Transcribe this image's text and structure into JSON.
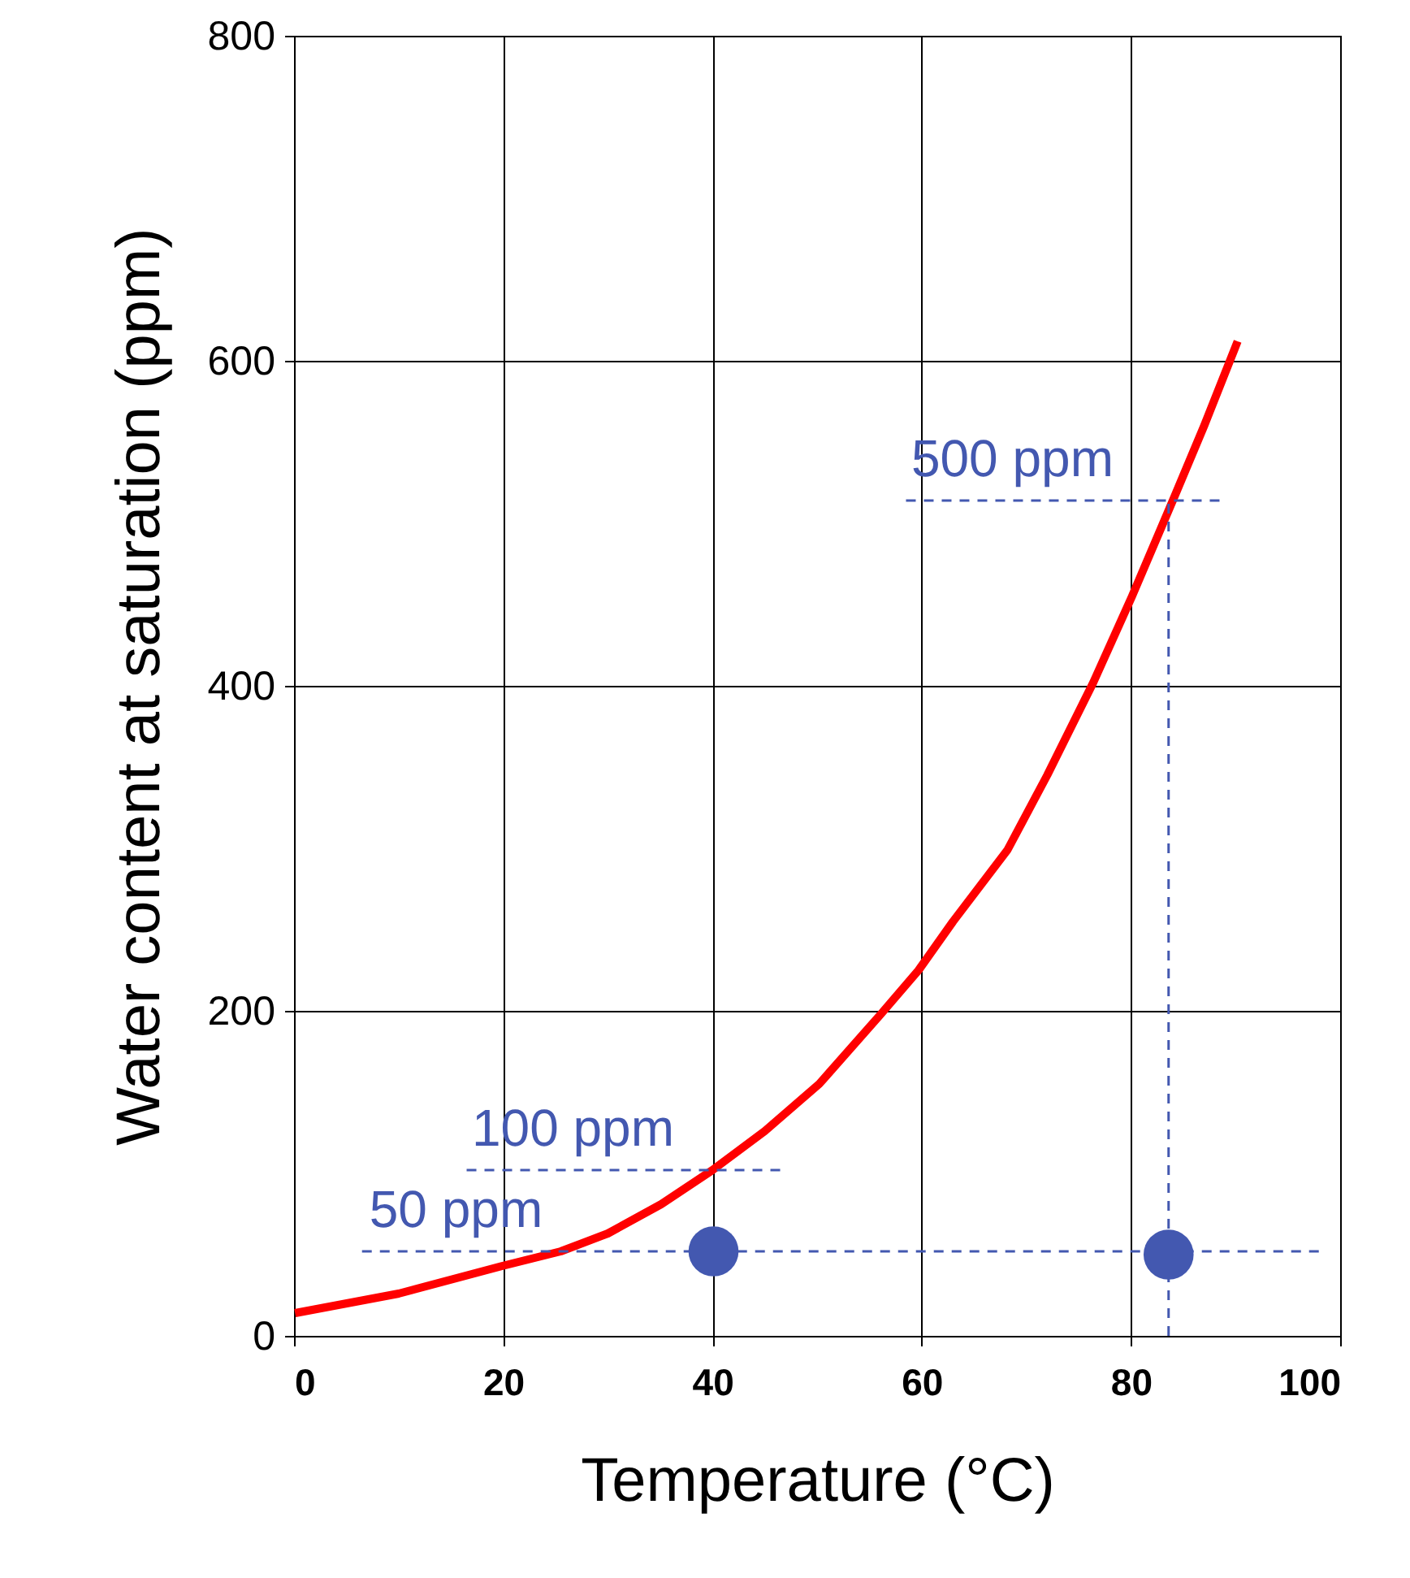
{
  "chart_data": {
    "type": "line",
    "xlabel": "Temperature (°C)",
    "ylabel": "Water content at saturation (ppm)",
    "xlim": [
      0,
      100
    ],
    "ylim": [
      0,
      800
    ],
    "xticks": [
      0,
      20,
      40,
      60,
      80,
      100
    ],
    "yticks": [
      0,
      200,
      400,
      600,
      800
    ],
    "grid": true,
    "series": [
      {
        "color": "#ff0000",
        "line_style": "solid",
        "x": [
          0.1,
          10,
          19.9,
          25.5,
          30,
          35.1,
          40,
          45,
          50.2,
          56.1,
          59.7,
          63,
          68.2,
          72,
          76.4,
          80.1,
          84.2,
          87,
          90.2
        ],
        "values": [
          14,
          26,
          43,
          52,
          63,
          81,
          102,
          126,
          155,
          198,
          225,
          255,
          299,
          345,
          402,
          455,
          517,
          560,
          612
        ]
      },
      {
        "color": "#4358b0",
        "line_style": "dashed",
        "x": [
          6.5,
          98.6
        ],
        "values": [
          52,
          52
        ]
      },
      {
        "color": "#4358b0",
        "line_style": "dashed",
        "x": [
          16.5,
          46.5
        ],
        "values": [
          102,
          102
        ]
      },
      {
        "color": "#4358b0",
        "line_style": "dashed",
        "x": [
          58.5,
          88.8
        ],
        "values": [
          514,
          514
        ]
      },
      {
        "color": "#4358b0",
        "line_style": "dashed",
        "x": [
          83.6,
          83.6
        ],
        "values": [
          0,
          514
        ]
      },
      {
        "type": "scatter",
        "color": "#4358b0",
        "marker": "circle",
        "x": [
          40.1,
          83.6
        ],
        "values": [
          52,
          50
        ]
      }
    ],
    "annotations": [
      {
        "text": "50 ppm",
        "x": 7.2,
        "y": 54
      },
      {
        "text": "100 ppm",
        "x": 17,
        "y": 104
      },
      {
        "text": "500 ppm",
        "x": 59,
        "y": 516
      }
    ]
  }
}
